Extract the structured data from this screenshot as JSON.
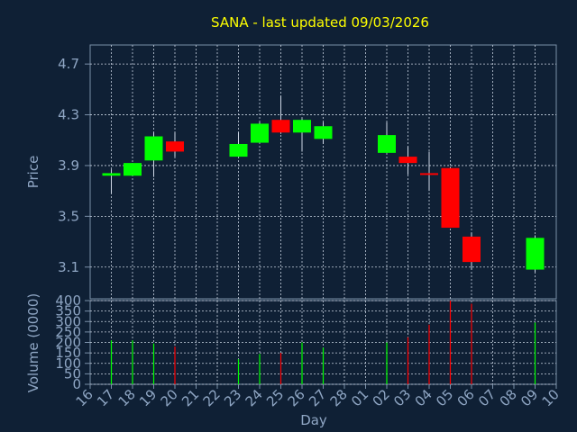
{
  "chart_data": {
    "type": "candlestick",
    "title": "SANA - last updated 09/03/2026",
    "colors": {
      "background": "#0f2035",
      "plot_border": "#7a8fa8",
      "grid": "#c8d2e0",
      "title": "#ffff00",
      "tick_text": "#8fa6c4",
      "label_text": "#8fa6c4",
      "up": "#00ff00",
      "down": "#ff0000",
      "wick": "#cfd8e6"
    },
    "x_tick_labels": [
      "16",
      "17",
      "18",
      "19",
      "20",
      "21",
      "22",
      "23",
      "24",
      "25",
      "26",
      "27",
      "28",
      "01",
      "02",
      "03",
      "04",
      "05",
      "06",
      "07",
      "08",
      "09",
      "10"
    ],
    "xlabel": "Day",
    "price_panel": {
      "ylabel": "Price",
      "ylim": [
        2.85,
        4.85
      ],
      "ticks": [
        "3.1",
        "3.5",
        "3.9",
        "4.3",
        "4.7"
      ],
      "grid": true
    },
    "volume_panel": {
      "ylabel": "Volume (0000)",
      "ylim": [
        0,
        400
      ],
      "ticks": [
        "0",
        "50",
        "100",
        "150",
        "200",
        "250",
        "300",
        "350",
        "400"
      ],
      "grid": true
    },
    "candles": [
      {
        "day": "17",
        "open": 3.82,
        "high": 3.87,
        "low": 3.68,
        "close": 3.84,
        "volume": 210
      },
      {
        "day": "18",
        "open": 3.82,
        "high": 3.92,
        "low": 3.82,
        "close": 3.92,
        "volume": 210
      },
      {
        "day": "19",
        "open": 3.94,
        "high": 4.16,
        "low": 3.81,
        "close": 4.13,
        "volume": 195
      },
      {
        "day": "20",
        "open": 4.09,
        "high": 4.16,
        "low": 3.97,
        "close": 4.01,
        "volume": 180
      },
      {
        "day": "23",
        "open": 3.97,
        "high": 4.16,
        "low": 3.97,
        "close": 4.07,
        "volume": 120
      },
      {
        "day": "24",
        "open": 4.08,
        "high": 4.24,
        "low": 4.08,
        "close": 4.23,
        "volume": 145
      },
      {
        "day": "25",
        "open": 4.26,
        "high": 4.45,
        "low": 4.15,
        "close": 4.16,
        "volume": 150
      },
      {
        "day": "26",
        "open": 4.16,
        "high": 4.27,
        "low": 4.01,
        "close": 4.26,
        "volume": 200
      },
      {
        "day": "27",
        "open": 4.11,
        "high": 4.24,
        "low": 4.07,
        "close": 4.21,
        "volume": 175
      },
      {
        "day": "02",
        "open": 4.0,
        "high": 4.24,
        "low": 4.0,
        "close": 4.14,
        "volume": 200
      },
      {
        "day": "03",
        "open": 3.97,
        "high": 4.05,
        "low": 3.83,
        "close": 3.92,
        "volume": 225
      },
      {
        "day": "04",
        "open": 3.84,
        "high": 4.01,
        "low": 3.7,
        "close": 3.83,
        "volume": 285
      },
      {
        "day": "05",
        "open": 3.88,
        "high": 3.89,
        "low": 3.41,
        "close": 3.41,
        "volume": 400
      },
      {
        "day": "06",
        "open": 3.34,
        "high": 3.37,
        "low": 3.08,
        "close": 3.14,
        "volume": 385
      },
      {
        "day": "09",
        "open": 3.08,
        "high": 3.35,
        "low": 3.06,
        "close": 3.33,
        "volume": 295
      }
    ]
  }
}
